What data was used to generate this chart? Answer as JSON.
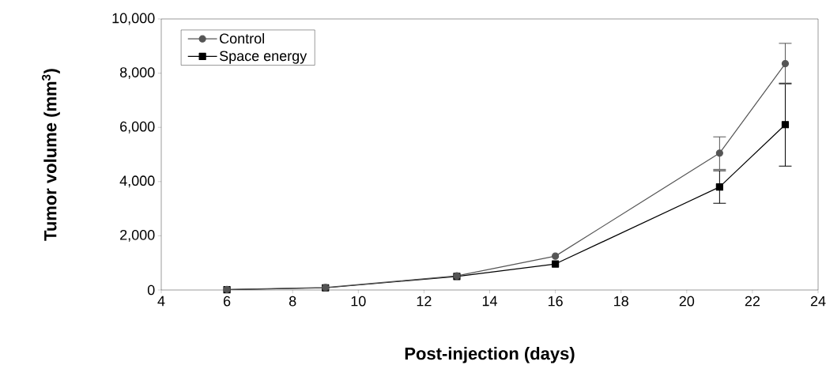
{
  "chart_data": {
    "type": "line",
    "xlabel": "Post-injection (days)",
    "ylabel": "Tumor volume (mm$^{3}$)",
    "x": [
      6,
      9,
      13,
      16,
      21,
      23
    ],
    "series": [
      {
        "name": "Control",
        "color": "#555555",
        "marker": "circle",
        "values": [
          20,
          90,
          520,
          1250,
          5050,
          8350
        ],
        "errors": [
          null,
          null,
          null,
          null,
          [
            4450,
            5650
          ],
          [
            7600,
            9100
          ]
        ]
      },
      {
        "name": "Space energy",
        "color": "#000000",
        "marker": "square",
        "values": [
          10,
          80,
          500,
          960,
          3800,
          6100
        ],
        "errors": [
          null,
          null,
          null,
          null,
          [
            3200,
            4400
          ],
          [
            4570,
            7630
          ]
        ]
      }
    ],
    "xlim": [
      4,
      24
    ],
    "xticks": [
      4,
      6,
      8,
      10,
      12,
      14,
      16,
      18,
      20,
      22,
      24
    ],
    "ylim": [
      0,
      10000
    ],
    "yticks": [
      0,
      {
        "value": 2000,
        "label": "2,000"
      },
      {
        "value": 4000,
        "label": "4,000"
      },
      {
        "value": 6000,
        "label": "6,000"
      },
      {
        "value": 8000,
        "label": "8,000"
      },
      {
        "value": 10000,
        "label": "10,000"
      }
    ],
    "legend": "top left",
    "grid": false,
    "line_style": "solid"
  }
}
